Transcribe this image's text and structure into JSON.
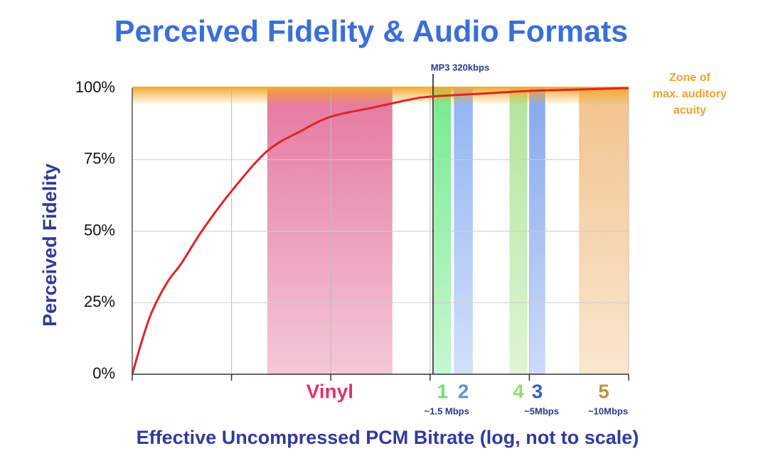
{
  "chart_data": {
    "type": "line",
    "title": "Perceived Fidelity & Audio Formats",
    "x_label": "Effective Uncompressed PCM Bitrate (log, not to scale)",
    "y_label": "Perceived Fidelity",
    "x": [
      0,
      0.1,
      0.2,
      0.35,
      0.5,
      0.7,
      1,
      1.36,
      1.7,
      2,
      2.4,
      2.8,
      3,
      3.5,
      4,
      4.5,
      5
    ],
    "values": [
      0,
      12,
      22,
      32,
      39,
      50,
      64,
      78,
      85,
      90,
      93,
      96,
      97,
      98,
      99,
      99.5,
      100
    ],
    "color": "#e02424",
    "xlim": [
      0,
      5
    ],
    "xticks": [
      0,
      1,
      2,
      3,
      4,
      5
    ],
    "ylim": [
      0,
      100
    ],
    "yticks": [
      {
        "value": 0,
        "label": "0%"
      },
      {
        "value": 25,
        "label": "25%"
      },
      {
        "value": 50,
        "label": "50%"
      },
      {
        "value": 75,
        "label": "75%"
      },
      {
        "value": 100,
        "label": "100%"
      }
    ],
    "grid": true,
    "bands": [
      {
        "name": "Vinyl",
        "range": [
          1.36,
          2.62
        ],
        "color": "#e0608e",
        "label_color": "#e3326b"
      },
      {
        "name": "1",
        "range": [
          3.04,
          3.21
        ],
        "color": "#5de87a",
        "label_color": "#6fe06f",
        "note": "~1.5 Mbps"
      },
      {
        "name": "2",
        "range": [
          3.24,
          3.43
        ],
        "color": "#7ea6f0",
        "label_color": "#5f8fe0"
      },
      {
        "name": "4",
        "range": [
          3.8,
          3.98
        ],
        "color": "#a4e08a",
        "label_color": "#8ee070"
      },
      {
        "name": "3",
        "range": [
          4.0,
          4.16
        ],
        "color": "#6f98ea",
        "label_color": "#3a5fc8",
        "note": "~5Mbps"
      },
      {
        "name": "5",
        "range": [
          4.5,
          5.0
        ],
        "color": "#f0b878",
        "label_color": "#c0913e",
        "note": "~10Mbps"
      }
    ],
    "marker": {
      "label": "MP3 320kbps",
      "x": 3.03
    },
    "zone": {
      "lines": [
        "Zone of",
        "max. auditory",
        "acuity"
      ],
      "range": [
        94,
        100
      ],
      "color": "#f5a623"
    }
  }
}
